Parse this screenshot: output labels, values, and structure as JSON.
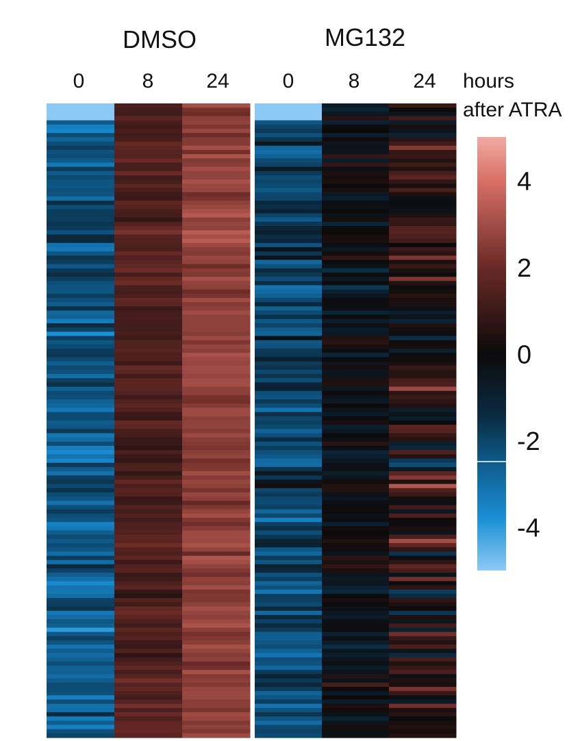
{
  "chart_data": {
    "type": "heatmap",
    "groups": [
      {
        "name": "DMSO",
        "columns": [
          "0",
          "8",
          "24"
        ]
      },
      {
        "name": "MG132",
        "columns": [
          "0",
          "8",
          "24"
        ]
      }
    ],
    "x_unit_label": "hours",
    "x_unit_label_2": "after ATRA",
    "colorbar": {
      "min": -5,
      "max": 5,
      "ticks": [
        4,
        2,
        0,
        -2,
        -4
      ],
      "tick_labels": [
        "4",
        "2",
        "0",
        "-2",
        "-4"
      ],
      "colors": {
        "low": "#8ccaf5",
        "mid_low": "#1a8fd6",
        "lower": "#0e5684",
        "zero": "#0c0a0b",
        "upper": "#6a2a26",
        "high": "#d97066",
        "top": "#f0aaa3"
      }
    },
    "row_count": 150,
    "column_profiles": {
      "DMSO_0h": {
        "mean": -2.4,
        "spread": 1.2
      },
      "DMSO_8h": {
        "mean": 1.4,
        "spread": 0.7
      },
      "DMSO_24h": {
        "mean": 2.6,
        "spread": 0.6
      },
      "MG132_0h": {
        "mean": -2.0,
        "spread": 1.3
      },
      "MG132_8h": {
        "mean": -0.3,
        "spread": 0.9
      },
      "MG132_24h": {
        "mean": 0.3,
        "spread": 1.8
      }
    }
  }
}
